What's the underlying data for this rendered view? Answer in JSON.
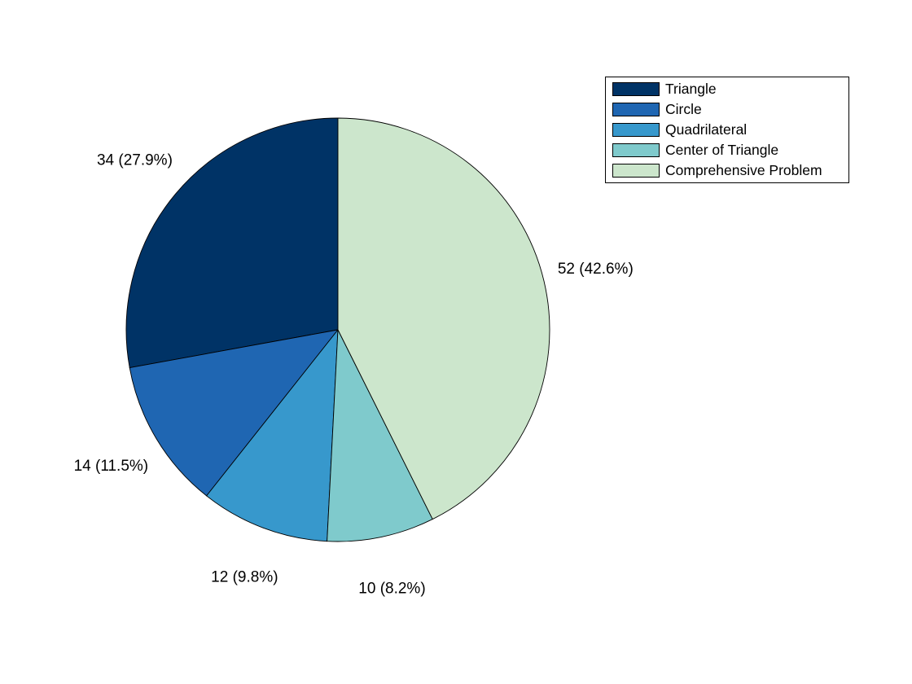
{
  "chart_data": {
    "type": "pie",
    "title": "",
    "slices": [
      {
        "label": "Triangle",
        "value": 34,
        "percent": 27.9,
        "text": "34 (27.9%)",
        "color": "#003366"
      },
      {
        "label": "Circle",
        "value": 14,
        "percent": 11.5,
        "text": "14 (11.5%)",
        "color": "#1f66b2"
      },
      {
        "label": "Quadrilateral",
        "value": 12,
        "percent": 9.8,
        "text": "12 (9.8%)",
        "color": "#3798cc"
      },
      {
        "label": "Center of Triangle",
        "value": 10,
        "percent": 8.2,
        "text": "10 (8.2%)",
        "color": "#7fcacc"
      },
      {
        "label": "Comprehensive Problem",
        "value": 52,
        "percent": 42.6,
        "text": "52 (42.6%)",
        "color": "#cce6cc"
      }
    ],
    "legend": {
      "position": "top-right",
      "entries": [
        "Triangle",
        "Circle",
        "Quadrilateral",
        "Center of Triangle",
        "Comprehensive Problem"
      ]
    }
  }
}
